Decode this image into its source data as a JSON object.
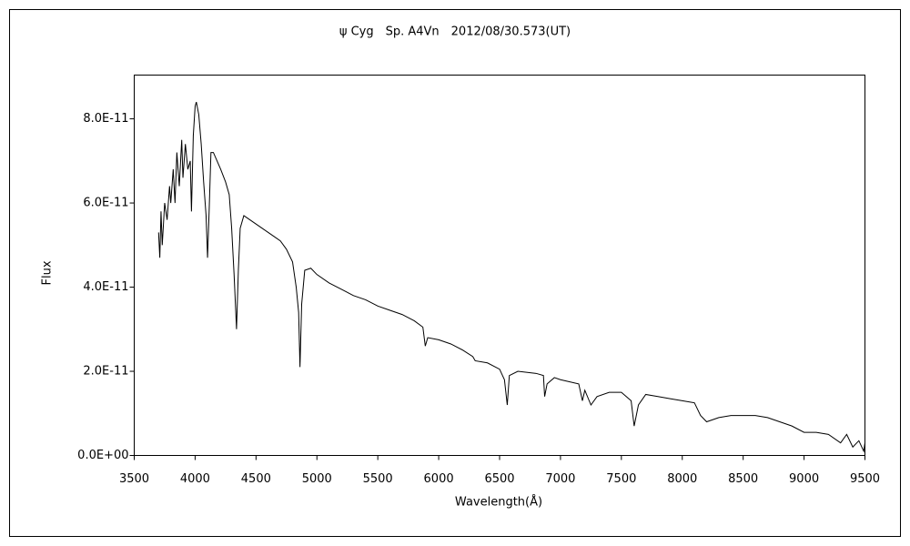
{
  "chart_data": {
    "type": "line",
    "title": "ψ Cyg　Sp. A4Vn　2012/08/30.573(UT)",
    "xlabel": "Wavelength(Å)",
    "ylabel": "Flux",
    "color": "#000000",
    "xlim": [
      3500,
      9500
    ],
    "xticks": [
      3500,
      4000,
      4500,
      5000,
      5500,
      6000,
      6500,
      7000,
      7500,
      8000,
      8500,
      9000,
      9500
    ],
    "ylim": [
      0,
      9.04e-11
    ],
    "yticks": [
      {
        "value": 0,
        "label": "0.0E+00"
      },
      {
        "value": 2e-11,
        "label": "2.0E-11"
      },
      {
        "value": 4e-11,
        "label": "4.0E-11"
      },
      {
        "value": 6e-11,
        "label": "6.0E-11"
      },
      {
        "value": 8e-11,
        "label": "8.0E-11"
      }
    ],
    "grid": false,
    "x": [
      3700,
      3710,
      3720,
      3730,
      3750,
      3770,
      3790,
      3800,
      3820,
      3835,
      3850,
      3870,
      3890,
      3900,
      3920,
      3940,
      3960,
      3970,
      3985,
      4000,
      4010,
      4030,
      4050,
      4070,
      4090,
      4102,
      4115,
      4130,
      4150,
      4180,
      4210,
      4250,
      4280,
      4300,
      4320,
      4340,
      4355,
      4370,
      4400,
      4450,
      4500,
      4550,
      4600,
      4650,
      4700,
      4750,
      4800,
      4830,
      4850,
      4861,
      4875,
      4900,
      4950,
      5000,
      5100,
      5200,
      5300,
      5400,
      5500,
      5600,
      5700,
      5800,
      5870,
      5890,
      5910,
      6000,
      6100,
      6200,
      6280,
      6300,
      6400,
      6500,
      6540,
      6563,
      6580,
      6650,
      6800,
      6860,
      6870,
      6890,
      6950,
      7000,
      7150,
      7180,
      7200,
      7250,
      7300,
      7400,
      7500,
      7580,
      7605,
      7640,
      7700,
      7800,
      7900,
      8000,
      8100,
      8150,
      8200,
      8300,
      8400,
      8500,
      8600,
      8700,
      8800,
      8900,
      9000,
      9100,
      9200,
      9300,
      9350,
      9400,
      9450,
      9490,
      9500
    ],
    "values": [
      5.3e-11,
      4.7e-11,
      5.8e-11,
      5e-11,
      6e-11,
      5.6e-11,
      6.4e-11,
      6e-11,
      6.8e-11,
      6e-11,
      7.2e-11,
      6.4e-11,
      7.5e-11,
      6.6e-11,
      7.4e-11,
      6.8e-11,
      7e-11,
      5.8e-11,
      7.6e-11,
      8.3e-11,
      8.4e-11,
      8.1e-11,
      7.4e-11,
      6.5e-11,
      5.7e-11,
      4.7e-11,
      5.8e-11,
      7.2e-11,
      7.2e-11,
      7e-11,
      6.8e-11,
      6.5e-11,
      6.2e-11,
      5.4e-11,
      4.3e-11,
      3e-11,
      4.4e-11,
      5.4e-11,
      5.7e-11,
      5.6e-11,
      5.5e-11,
      5.4e-11,
      5.3e-11,
      5.2e-11,
      5.1e-11,
      4.9e-11,
      4.6e-11,
      4e-11,
      3.4e-11,
      2.1e-11,
      3.6e-11,
      4.4e-11,
      4.45e-11,
      4.3e-11,
      4.1e-11,
      3.95e-11,
      3.8e-11,
      3.7e-11,
      3.55e-11,
      3.45e-11,
      3.35e-11,
      3.2e-11,
      3.05e-11,
      2.6e-11,
      2.8e-11,
      2.75e-11,
      2.65e-11,
      2.5e-11,
      2.35e-11,
      2.25e-11,
      2.2e-11,
      2.05e-11,
      1.8e-11,
      1.2e-11,
      1.9e-11,
      2e-11,
      1.95e-11,
      1.9e-11,
      1.4e-11,
      1.7e-11,
      1.85e-11,
      1.8e-11,
      1.7e-11,
      1.3e-11,
      1.55e-11,
      1.2e-11,
      1.4e-11,
      1.5e-11,
      1.5e-11,
      1.3e-11,
      7e-12,
      1.2e-11,
      1.45e-11,
      1.4e-11,
      1.35e-11,
      1.3e-11,
      1.25e-11,
      9.5e-12,
      8e-12,
      9e-12,
      9.5e-12,
      9.5e-12,
      9.5e-12,
      9e-12,
      8e-12,
      7e-12,
      5.5e-12,
      5.5e-12,
      5e-12,
      3e-12,
      5e-12,
      2e-12,
      3.5e-12,
      1e-12,
      3e-12
    ]
  }
}
